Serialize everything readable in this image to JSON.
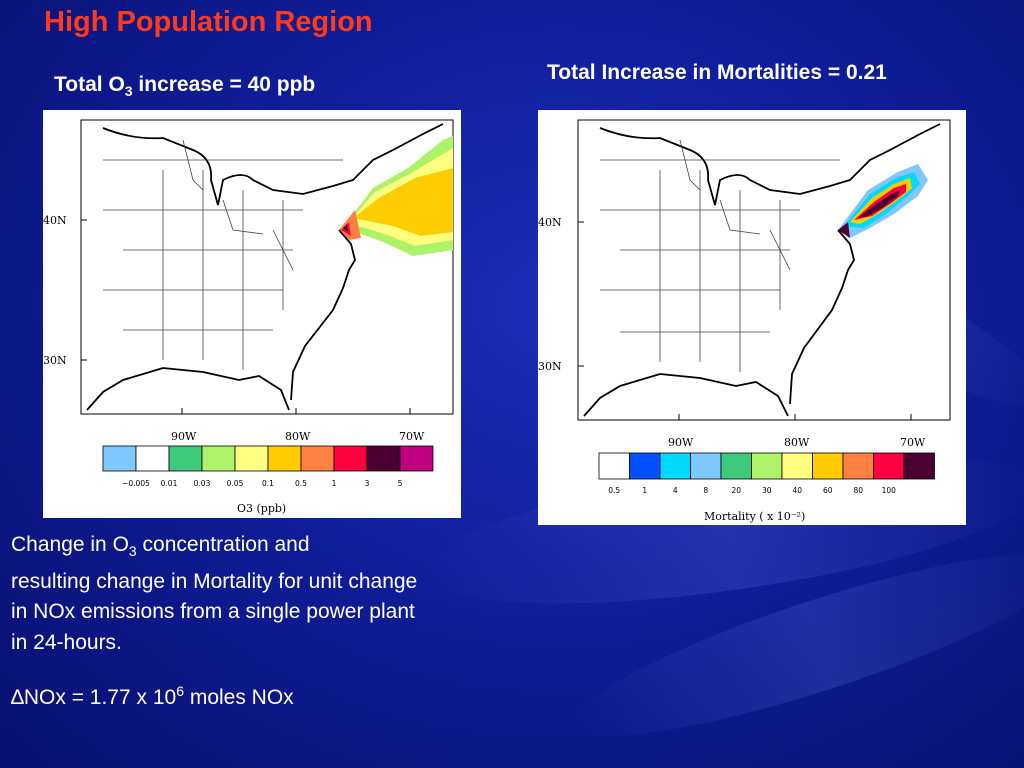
{
  "slide": {
    "title": "High Population Region",
    "left_heading_pre": "Total O",
    "left_heading_sub": "3",
    "left_heading_post": " increase = 40 ppb",
    "right_heading": "Total Increase in Mortalities = 0.21",
    "caption_line1_pre": "Change in O",
    "caption_line1_sub": "3",
    "caption_line1_post": " concentration and",
    "caption_line2": "resulting change in Mortality for unit change",
    "caption_line3": "in NOx emissions from a single power plant",
    "caption_line4": "in 24-hours.",
    "delta_symbol": "∆",
    "delta_pre": "NOx = 1.77 x 10",
    "delta_sup": "6",
    "delta_post": " moles NOx"
  },
  "map_labels": {
    "lat_40": "40N",
    "lat_30": "30N",
    "lon_90": "90W",
    "lon_80": "80W",
    "lon_70": "70W"
  },
  "left_map": {
    "colorbar_colors": [
      "#7fc8ff",
      "#ffffff",
      "#3ec97a",
      "#aef26a",
      "#ffff80",
      "#ffcc00",
      "#ff8040",
      "#ff0040",
      "#4a0030",
      "#c00080"
    ],
    "colorbar_ticks": [
      "−0.005",
      "0.01",
      "0.03",
      "0.05",
      "0.1",
      "0.5",
      "1",
      "3",
      "5"
    ],
    "colorbar_label": "O3 (ppb)"
  },
  "right_map": {
    "colorbar_colors": [
      "#ffffff",
      "#0050ff",
      "#00d8ff",
      "#7fc8ff",
      "#3ec97a",
      "#aef26a",
      "#ffff80",
      "#ffcc00",
      "#ff8040",
      "#ff0040",
      "#4a0030"
    ],
    "colorbar_ticks": [
      "0.5",
      "1",
      "4",
      "8",
      "20",
      "30",
      "40",
      "60",
      "80",
      "100"
    ],
    "colorbar_label": "Mortality ( x 10⁻²)"
  }
}
